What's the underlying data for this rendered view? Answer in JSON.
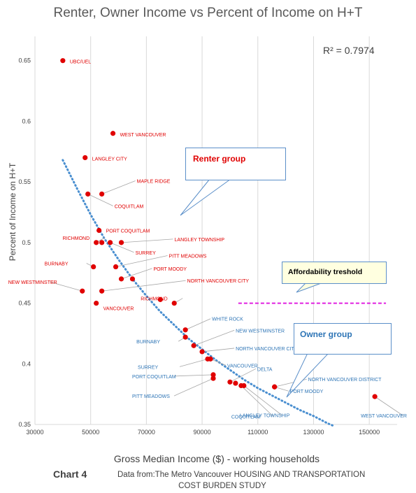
{
  "chart_data": {
    "type": "scatter",
    "title": "Renter, Owner Income vs Percent of Income on H+T",
    "xlabel": "Gross Median Income ($) - working households",
    "ylabel": "Percent of Income on H+T",
    "xlim": [
      30000,
      160000
    ],
    "ylim": [
      0.35,
      0.67
    ],
    "x_ticks": [
      "30000",
      "50000",
      "70000",
      "90000",
      "110000",
      "130000",
      "150000"
    ],
    "y_ticks": [
      "0.35",
      "0.4",
      "0.45",
      "0.5",
      "0.55",
      "0.6",
      "0.65"
    ],
    "grid": "vertical",
    "r_squared_label": "R² = 0.7974",
    "colors": {
      "points": "#e00000",
      "renter_labels": "#e00000",
      "owner_labels": "#2e75b6",
      "trendline": "#4a8fd0",
      "threshold": "#e020e0",
      "grid": "#d9d9d9"
    },
    "renter_points": [
      {
        "label": "UBC/UEL",
        "x": 40000,
        "y": 0.65
      },
      {
        "label": "WEST VANCOUVER",
        "x": 58000,
        "y": 0.59
      },
      {
        "label": "LANGLEY CITY",
        "x": 48000,
        "y": 0.57
      },
      {
        "label": "MAPLE RIDGE",
        "x": 54000,
        "y": 0.54
      },
      {
        "label": "COQUITLAM",
        "x": 49000,
        "y": 0.54
      },
      {
        "label": "PORT COQUITLAM",
        "x": 53000,
        "y": 0.51
      },
      {
        "label": "RICHMOND",
        "x": 52000,
        "y": 0.5
      },
      {
        "label": "",
        "x": 54000,
        "y": 0.5
      },
      {
        "label": "SURREY",
        "x": 57000,
        "y": 0.5
      },
      {
        "label": "LANGLEY TOWNSHIP",
        "x": 61000,
        "y": 0.5
      },
      {
        "label": "BURNABY",
        "x": 51000,
        "y": 0.48
      },
      {
        "label": "PITT MEADOWS",
        "x": 59000,
        "y": 0.48
      },
      {
        "label": "PORT MOODY",
        "x": 61000,
        "y": 0.47
      },
      {
        "label": "",
        "x": 65000,
        "y": 0.47
      },
      {
        "label": "NEW WESTMINSTER",
        "x": 47000,
        "y": 0.46
      },
      {
        "label": "NORTH VANCOUVER CITY",
        "x": 54000,
        "y": 0.46
      },
      {
        "label": "VANCOUVER",
        "x": 52000,
        "y": 0.45
      },
      {
        "label": "",
        "x": 75000,
        "y": 0.453
      },
      {
        "label": "RICHMOND",
        "x": 80000,
        "y": 0.45
      }
    ],
    "owner_points": [
      {
        "label": "WHITE ROCK",
        "x": 84000,
        "y": 0.428
      },
      {
        "label": "BURNABY",
        "x": 84000,
        "y": 0.422
      },
      {
        "label": "NEW WESTMINSTER",
        "x": 87000,
        "y": 0.415
      },
      {
        "label": "NORTH VANCOUVER CITY",
        "x": 90000,
        "y": 0.41
      },
      {
        "label": "SURREY",
        "x": 92000,
        "y": 0.404
      },
      {
        "label": "VANCOUVER",
        "x": 93000,
        "y": 0.404
      },
      {
        "label": "PORT COQUITLAM",
        "x": 94000,
        "y": 0.391
      },
      {
        "label": "PITT MEADOWS",
        "x": 94000,
        "y": 0.388
      },
      {
        "label": "DELTA",
        "x": 100000,
        "y": 0.385
      },
      {
        "label": "",
        "x": 102000,
        "y": 0.384
      },
      {
        "label": "COQUITLAM",
        "x": 104000,
        "y": 0.382
      },
      {
        "label": "LANGLEY TOWNSHIP",
        "x": 105000,
        "y": 0.382
      },
      {
        "label": "NORTH VANCOUVER DISTRICT",
        "x": 116000,
        "y": 0.381
      },
      {
        "label": "PORT MOODY",
        "x": 116000,
        "y": 0.381
      },
      {
        "label": "WEST VANCOUVER",
        "x": 152000,
        "y": 0.373
      }
    ],
    "trendline": [
      {
        "x": 40000,
        "y": 0.568
      },
      {
        "x": 45000,
        "y": 0.545
      },
      {
        "x": 50000,
        "y": 0.523
      },
      {
        "x": 55000,
        "y": 0.503
      },
      {
        "x": 60000,
        "y": 0.486
      },
      {
        "x": 65000,
        "y": 0.47
      },
      {
        "x": 70000,
        "y": 0.456
      },
      {
        "x": 75000,
        "y": 0.443
      },
      {
        "x": 80000,
        "y": 0.432
      },
      {
        "x": 85000,
        "y": 0.421
      },
      {
        "x": 90000,
        "y": 0.412
      },
      {
        "x": 95000,
        "y": 0.403
      },
      {
        "x": 100000,
        "y": 0.395
      },
      {
        "x": 105000,
        "y": 0.387
      },
      {
        "x": 110000,
        "y": 0.38
      },
      {
        "x": 115000,
        "y": 0.374
      },
      {
        "x": 120000,
        "y": 0.368
      },
      {
        "x": 125000,
        "y": 0.362
      },
      {
        "x": 130000,
        "y": 0.357
      },
      {
        "x": 135000,
        "y": 0.351
      },
      {
        "x": 137000,
        "y": 0.349
      }
    ],
    "threshold": {
      "y": 0.45,
      "x_start": 103000,
      "x_end": 156000
    }
  },
  "callouts": {
    "renter": "Renter group",
    "owner": "Owner group",
    "affordability": "Affordability treshold"
  },
  "footer": {
    "chart_number": "Chart 4",
    "source_line1": "Data from:The Metro Vancouver HOUSING AND TRANSPORTATION",
    "source_line2": "COST BURDEN STUDY"
  }
}
